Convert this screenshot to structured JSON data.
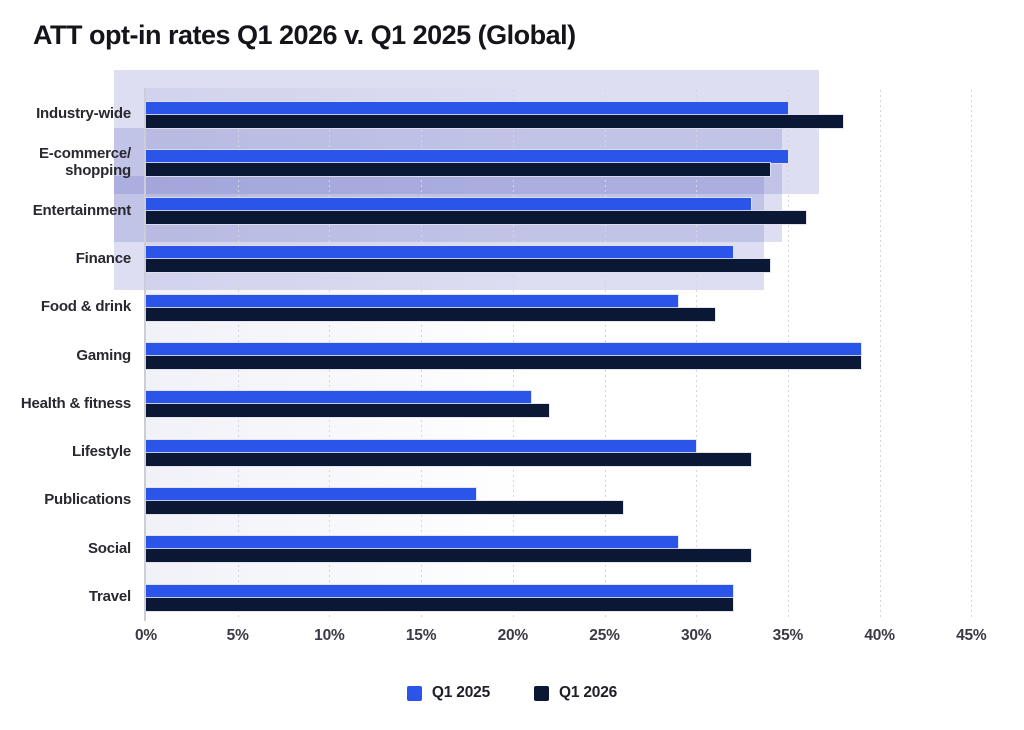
{
  "title": "ATT opt-in rates Q1 2026 v. Q1 2025 (Global)",
  "legend": [
    {
      "label": "Q1 2025",
      "color": "#2b54e8"
    },
    {
      "label": "Q1 2026",
      "color": "#0a1735"
    }
  ],
  "colors": {
    "q1_2025": "#2b54e8",
    "q1_2026": "#0a1735",
    "highlight": "rgba(86,88,190,0.20)",
    "gridline": "#d5d5df",
    "axis_line": "#cdcdd6",
    "title_text": "#14141a",
    "category_text": "#28282f",
    "tick_text": "#3a3a44"
  },
  "chart_data": {
    "type": "bar",
    "orientation": "horizontal",
    "title": "ATT opt-in rates Q1 2026 v. Q1 2025 (Global)",
    "categories": [
      "Industry-wide",
      "E-commerce/\nshopping",
      "Entertainment",
      "Finance",
      "Food & drink",
      "Gaming",
      "Health & fitness",
      "Lifestyle",
      "Publications",
      "Social",
      "Travel"
    ],
    "series": [
      {
        "name": "Q1 2025",
        "color": "#2b54e8",
        "values": [
          35,
          35,
          33,
          32,
          29,
          39,
          21,
          30,
          18,
          29,
          32
        ]
      },
      {
        "name": "Q1 2026",
        "color": "#0a1735",
        "values": [
          38,
          34,
          36,
          34,
          31,
          39,
          22,
          33,
          26,
          33,
          32
        ]
      }
    ],
    "unit": "%",
    "x_axis": {
      "tick_labels": [
        "0%",
        "5%",
        "10%",
        "15%",
        "20%",
        "25%",
        "30%",
        "35%",
        "40%",
        "45%"
      ],
      "max_pct": 46
    },
    "grid": "dotted-vertical",
    "legend_position": "bottom",
    "highlight": {
      "highlighted_categories": [
        "Industry-wide",
        "E-commerce/shopping",
        "Entertainment",
        "Finance"
      ],
      "band_right_pcts": [
        36.7,
        34.7,
        33.7
      ],
      "color": "rgba(86,88,190,0.20)"
    }
  }
}
